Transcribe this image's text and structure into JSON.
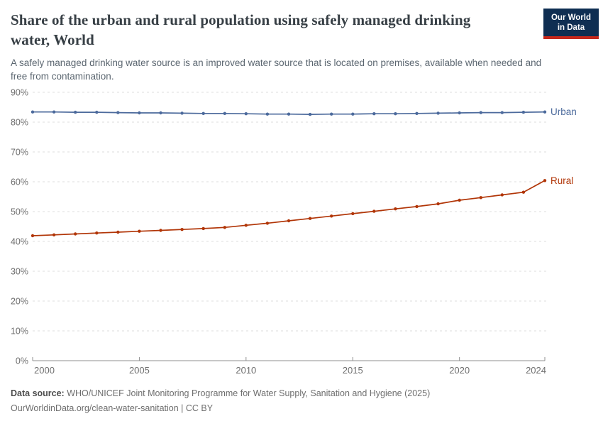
{
  "chart_data": {
    "type": "line",
    "title": "Share of the urban and rural population using safely managed drinking water, World",
    "subtitle": "A safely managed drinking water source is an improved water source that is located on premises, available when needed and free from contamination.",
    "unit": "%",
    "x": [
      2000,
      2001,
      2002,
      2003,
      2004,
      2005,
      2006,
      2007,
      2008,
      2009,
      2010,
      2011,
      2012,
      2013,
      2014,
      2015,
      2016,
      2017,
      2018,
      2019,
      2020,
      2021,
      2022,
      2023,
      2024
    ],
    "series": [
      {
        "name": "Urban",
        "color": "#4C6A9C",
        "values": [
          83.4,
          83.4,
          83.3,
          83.3,
          83.2,
          83.1,
          83.1,
          83.0,
          82.9,
          82.9,
          82.8,
          82.7,
          82.7,
          82.6,
          82.7,
          82.7,
          82.8,
          82.8,
          82.9,
          83.0,
          83.1,
          83.2,
          83.2,
          83.3,
          83.4
        ]
      },
      {
        "name": "Rural",
        "color": "#B13507",
        "values": [
          41.9,
          42.2,
          42.5,
          42.8,
          43.1,
          43.4,
          43.7,
          44.0,
          44.3,
          44.7,
          45.4,
          46.1,
          46.9,
          47.7,
          48.5,
          49.3,
          50.1,
          50.9,
          51.7,
          52.6,
          53.8,
          54.7,
          55.6,
          56.5,
          60.4
        ]
      }
    ],
    "xlabel": "",
    "ylabel": "",
    "ylim": [
      0,
      90
    ],
    "yticks": [
      0,
      10,
      20,
      30,
      40,
      50,
      60,
      70,
      80,
      90
    ],
    "ytick_labels": [
      "0%",
      "10%",
      "20%",
      "30%",
      "40%",
      "50%",
      "60%",
      "70%",
      "80%",
      "90%"
    ],
    "xticks": [
      2000,
      2005,
      2010,
      2015,
      2020,
      2024
    ],
    "xtick_labels": [
      "2000",
      "2005",
      "2010",
      "2015",
      "2020",
      "2024"
    ],
    "grid": "horizontal-dashed",
    "legend_position": "line-end-labels"
  },
  "header": {
    "logo": {
      "line1": "Our World",
      "line2": "in Data"
    }
  },
  "footer": {
    "datasource_label": "Data source:",
    "datasource_text": "WHO/UNICEF Joint Monitoring Programme for Water Supply, Sanitation and Hygiene (2025)",
    "url_line": "OurWorldinData.org/clean-water-sanitation | CC BY"
  },
  "colors": {
    "axis_text": "#6e6e6e",
    "gridline": "#dcdcdc",
    "axis_line": "#8f8f8f",
    "title_text": "#373f45",
    "subtitle_text": "#5b6670",
    "logo_bg": "#0f2e52",
    "logo_accent": "#c5281c"
  }
}
